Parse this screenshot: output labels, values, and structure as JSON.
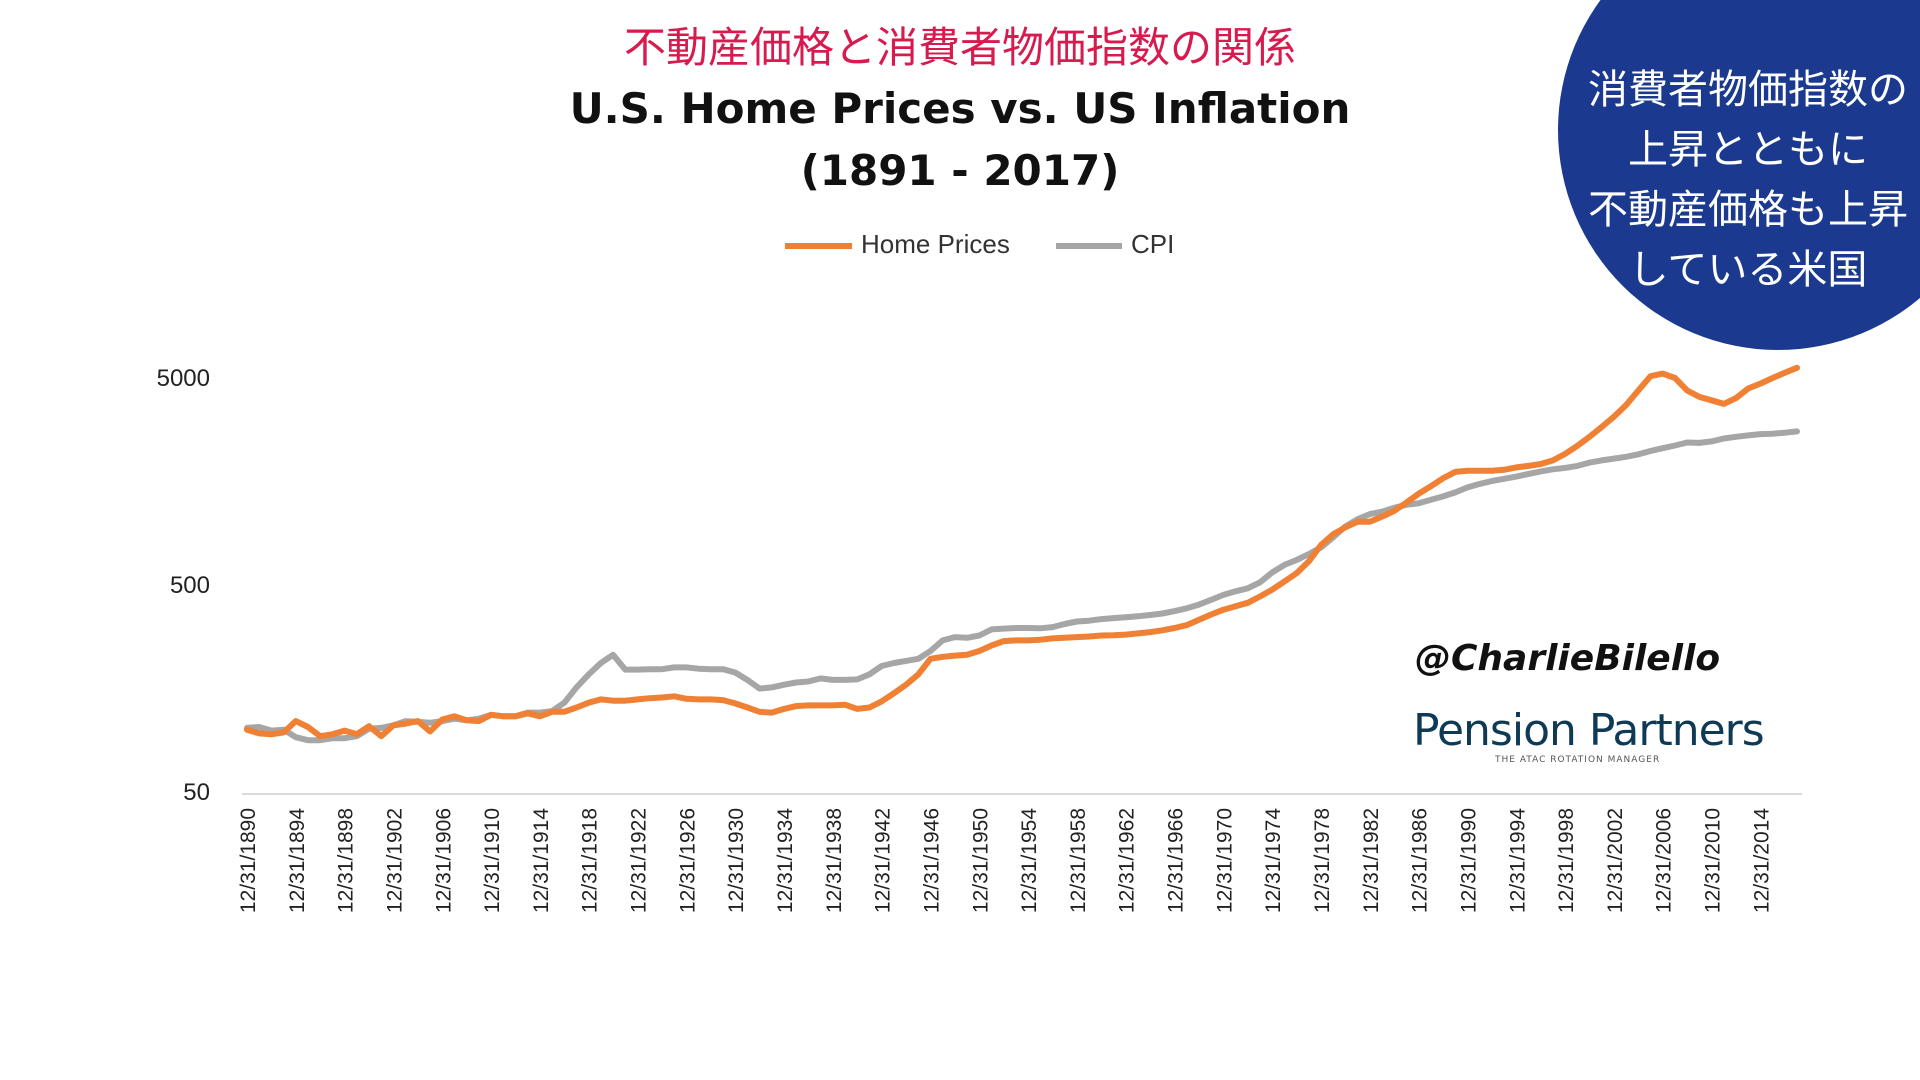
{
  "header": {
    "jp_title": "不動産価格と消費者物価指数の関係",
    "title_line1": "U.S. Home Prices vs. US Inflation",
    "title_line2": "(1891 - 2017)"
  },
  "callout": {
    "lines": [
      "消費者物価指数の",
      "上昇とともに",
      "不動産価格も上昇",
      "している米国"
    ],
    "color": "#1b3a8f"
  },
  "branding": {
    "handle": "@CharlieBilello",
    "brand": "Pension Partners",
    "tagline": "THE ATAC ROTATION MANAGER"
  },
  "chart_data": {
    "type": "line",
    "title": "U.S. Home Prices vs. US Inflation",
    "subtitle": "(1891 - 2017)",
    "xlabel": "",
    "ylabel": "",
    "y_scale": "log",
    "ylim": [
      50,
      8000
    ],
    "y_ticks": [
      50,
      500,
      5000
    ],
    "x_ticks": [
      "12/31/1890",
      "12/31/1894",
      "12/31/1898",
      "12/31/1902",
      "12/31/1906",
      "12/31/1910",
      "12/31/1914",
      "12/31/1918",
      "12/31/1922",
      "12/31/1926",
      "12/31/1930",
      "12/31/1934",
      "12/31/1938",
      "12/31/1942",
      "12/31/1946",
      "12/31/1950",
      "12/31/1954",
      "12/31/1958",
      "12/31/1962",
      "12/31/1966",
      "12/31/1970",
      "12/31/1974",
      "12/31/1978",
      "12/31/1982",
      "12/31/1986",
      "12/31/1990",
      "12/31/1994",
      "12/31/1998",
      "12/31/2002",
      "12/31/2006",
      "12/31/2010",
      "12/31/2014"
    ],
    "x_range": [
      1890,
      2017
    ],
    "grid": false,
    "legend": "top-center",
    "series": [
      {
        "name": "Home Prices",
        "color": "#f08033",
        "points": [
          [
            1890,
            100
          ],
          [
            1891,
            96
          ],
          [
            1892,
            95
          ],
          [
            1893,
            97
          ],
          [
            1894,
            110
          ],
          [
            1895,
            103
          ],
          [
            1896,
            93
          ],
          [
            1897,
            95
          ],
          [
            1898,
            99
          ],
          [
            1899,
            95
          ],
          [
            1900,
            104
          ],
          [
            1901,
            93
          ],
          [
            1902,
            105
          ],
          [
            1903,
            107
          ],
          [
            1904,
            110
          ],
          [
            1905,
            98
          ],
          [
            1906,
            112
          ],
          [
            1907,
            116
          ],
          [
            1908,
            111
          ],
          [
            1909,
            110
          ],
          [
            1910,
            118
          ],
          [
            1911,
            116
          ],
          [
            1912,
            116
          ],
          [
            1913,
            120
          ],
          [
            1914,
            116
          ],
          [
            1915,
            122
          ],
          [
            1916,
            122
          ],
          [
            1917,
            128
          ],
          [
            1918,
            135
          ],
          [
            1919,
            140
          ],
          [
            1920,
            138
          ],
          [
            1921,
            138
          ],
          [
            1922,
            140
          ],
          [
            1923,
            142
          ],
          [
            1924,
            143
          ],
          [
            1925,
            145
          ],
          [
            1926,
            141
          ],
          [
            1927,
            140
          ],
          [
            1928,
            140
          ],
          [
            1929,
            139
          ],
          [
            1930,
            134
          ],
          [
            1931,
            128
          ],
          [
            1932,
            122
          ],
          [
            1933,
            121
          ],
          [
            1934,
            126
          ],
          [
            1935,
            130
          ],
          [
            1936,
            131
          ],
          [
            1937,
            131
          ],
          [
            1938,
            131
          ],
          [
            1939,
            132
          ],
          [
            1940,
            126
          ],
          [
            1941,
            128
          ],
          [
            1942,
            137
          ],
          [
            1943,
            150
          ],
          [
            1944,
            165
          ],
          [
            1945,
            185
          ],
          [
            1946,
            220
          ],
          [
            1947,
            225
          ],
          [
            1948,
            228
          ],
          [
            1949,
            230
          ],
          [
            1950,
            240
          ],
          [
            1951,
            255
          ],
          [
            1952,
            268
          ],
          [
            1953,
            270
          ],
          [
            1954,
            270
          ],
          [
            1955,
            272
          ],
          [
            1956,
            276
          ],
          [
            1957,
            278
          ],
          [
            1958,
            280
          ],
          [
            1959,
            282
          ],
          [
            1960,
            285
          ],
          [
            1961,
            286
          ],
          [
            1962,
            288
          ],
          [
            1963,
            292
          ],
          [
            1964,
            296
          ],
          [
            1965,
            302
          ],
          [
            1966,
            310
          ],
          [
            1967,
            320
          ],
          [
            1968,
            340
          ],
          [
            1969,
            360
          ],
          [
            1970,
            380
          ],
          [
            1971,
            395
          ],
          [
            1972,
            410
          ],
          [
            1973,
            440
          ],
          [
            1974,
            475
          ],
          [
            1975,
            520
          ],
          [
            1976,
            570
          ],
          [
            1977,
            650
          ],
          [
            1978,
            780
          ],
          [
            1979,
            880
          ],
          [
            1980,
            950
          ],
          [
            1981,
            1010
          ],
          [
            1982,
            1010
          ],
          [
            1983,
            1070
          ],
          [
            1984,
            1140
          ],
          [
            1985,
            1250
          ],
          [
            1986,
            1380
          ],
          [
            1987,
            1500
          ],
          [
            1988,
            1640
          ],
          [
            1989,
            1760
          ],
          [
            1990,
            1780
          ],
          [
            1991,
            1780
          ],
          [
            1992,
            1780
          ],
          [
            1993,
            1800
          ],
          [
            1994,
            1850
          ],
          [
            1995,
            1880
          ],
          [
            1996,
            1920
          ],
          [
            1997,
            2000
          ],
          [
            1998,
            2150
          ],
          [
            1999,
            2350
          ],
          [
            2000,
            2600
          ],
          [
            2001,
            2900
          ],
          [
            2002,
            3250
          ],
          [
            2003,
            3700
          ],
          [
            2004,
            4350
          ],
          [
            2005,
            5100
          ],
          [
            2006,
            5250
          ],
          [
            2007,
            5000
          ],
          [
            2008,
            4350
          ],
          [
            2009,
            4050
          ],
          [
            2010,
            3900
          ],
          [
            2011,
            3750
          ],
          [
            2012,
            4000
          ],
          [
            2013,
            4450
          ],
          [
            2014,
            4700
          ],
          [
            2015,
            5000
          ],
          [
            2016,
            5300
          ],
          [
            2017,
            5600
          ]
        ]
      },
      {
        "name": "CPI",
        "color": "#a6a6a6",
        "points": [
          [
            1890,
            102
          ],
          [
            1891,
            103
          ],
          [
            1892,
            99
          ],
          [
            1893,
            100
          ],
          [
            1894,
            92
          ],
          [
            1895,
            89
          ],
          [
            1896,
            89
          ],
          [
            1897,
            91
          ],
          [
            1898,
            91
          ],
          [
            1899,
            93
          ],
          [
            1900,
            101
          ],
          [
            1901,
            102
          ],
          [
            1902,
            105
          ],
          [
            1903,
            110
          ],
          [
            1904,
            109
          ],
          [
            1905,
            108
          ],
          [
            1906,
            110
          ],
          [
            1907,
            113
          ],
          [
            1908,
            111
          ],
          [
            1909,
            113
          ],
          [
            1910,
            118
          ],
          [
            1911,
            116
          ],
          [
            1912,
            116
          ],
          [
            1913,
            121
          ],
          [
            1914,
            121
          ],
          [
            1915,
            123
          ],
          [
            1916,
            135
          ],
          [
            1917,
            160
          ],
          [
            1918,
            185
          ],
          [
            1919,
            210
          ],
          [
            1920,
            230
          ],
          [
            1921,
            195
          ],
          [
            1922,
            195
          ],
          [
            1923,
            196
          ],
          [
            1924,
            196
          ],
          [
            1925,
            200
          ],
          [
            1926,
            200
          ],
          [
            1927,
            197
          ],
          [
            1928,
            196
          ],
          [
            1929,
            196
          ],
          [
            1930,
            189
          ],
          [
            1931,
            174
          ],
          [
            1932,
            158
          ],
          [
            1933,
            160
          ],
          [
            1934,
            165
          ],
          [
            1935,
            169
          ],
          [
            1936,
            171
          ],
          [
            1937,
            177
          ],
          [
            1938,
            174
          ],
          [
            1939,
            174
          ],
          [
            1940,
            175
          ],
          [
            1941,
            185
          ],
          [
            1942,
            203
          ],
          [
            1943,
            210
          ],
          [
            1944,
            215
          ],
          [
            1945,
            220
          ],
          [
            1946,
            240
          ],
          [
            1947,
            270
          ],
          [
            1948,
            280
          ],
          [
            1949,
            278
          ],
          [
            1950,
            285
          ],
          [
            1951,
            305
          ],
          [
            1952,
            308
          ],
          [
            1953,
            310
          ],
          [
            1954,
            310
          ],
          [
            1955,
            309
          ],
          [
            1956,
            313
          ],
          [
            1957,
            324
          ],
          [
            1958,
            333
          ],
          [
            1959,
            336
          ],
          [
            1960,
            342
          ],
          [
            1961,
            346
          ],
          [
            1962,
            349
          ],
          [
            1963,
            353
          ],
          [
            1964,
            358
          ],
          [
            1965,
            364
          ],
          [
            1966,
            374
          ],
          [
            1967,
            386
          ],
          [
            1968,
            402
          ],
          [
            1969,
            424
          ],
          [
            1970,
            448
          ],
          [
            1971,
            466
          ],
          [
            1972,
            482
          ],
          [
            1973,
            515
          ],
          [
            1974,
            575
          ],
          [
            1975,
            625
          ],
          [
            1976,
            660
          ],
          [
            1977,
            705
          ],
          [
            1978,
            760
          ],
          [
            1979,
            850
          ],
          [
            1980,
            960
          ],
          [
            1981,
            1040
          ],
          [
            1982,
            1100
          ],
          [
            1983,
            1130
          ],
          [
            1984,
            1180
          ],
          [
            1985,
            1220
          ],
          [
            1986,
            1240
          ],
          [
            1987,
            1290
          ],
          [
            1988,
            1340
          ],
          [
            1989,
            1400
          ],
          [
            1990,
            1480
          ],
          [
            1991,
            1540
          ],
          [
            1992,
            1590
          ],
          [
            1993,
            1630
          ],
          [
            1994,
            1670
          ],
          [
            1995,
            1720
          ],
          [
            1996,
            1770
          ],
          [
            1997,
            1810
          ],
          [
            1998,
            1840
          ],
          [
            1999,
            1880
          ],
          [
            2000,
            1950
          ],
          [
            2001,
            2000
          ],
          [
            2002,
            2040
          ],
          [
            2003,
            2080
          ],
          [
            2004,
            2140
          ],
          [
            2005,
            2220
          ],
          [
            2006,
            2290
          ],
          [
            2007,
            2360
          ],
          [
            2008,
            2440
          ],
          [
            2009,
            2430
          ],
          [
            2010,
            2470
          ],
          [
            2011,
            2550
          ],
          [
            2012,
            2600
          ],
          [
            2013,
            2640
          ],
          [
            2014,
            2680
          ],
          [
            2015,
            2690
          ],
          [
            2016,
            2720
          ],
          [
            2017,
            2760
          ]
        ]
      }
    ]
  }
}
